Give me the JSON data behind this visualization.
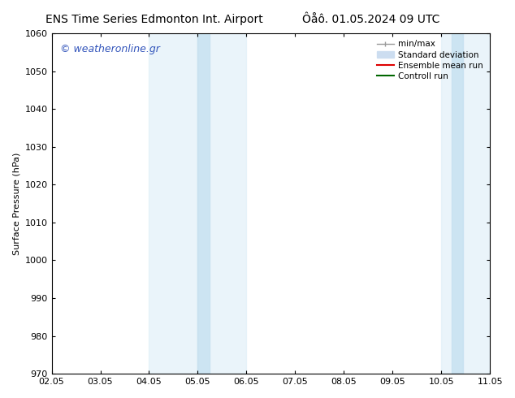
{
  "title_left": "ENS Time Series Edmonton Int. Airport",
  "title_right": "Ôåô. 01.05.2024 09 UTC",
  "ylabel": "Surface Pressure (hPa)",
  "ylim": [
    970,
    1060
  ],
  "yticks": [
    970,
    980,
    990,
    1000,
    1010,
    1020,
    1030,
    1040,
    1050,
    1060
  ],
  "xlabel_ticks": [
    "02.05",
    "03.05",
    "04.05",
    "05.05",
    "06.05",
    "07.05",
    "08.05",
    "09.05",
    "10.05",
    "11.05"
  ],
  "x_num_ticks": 10,
  "x_min": 0,
  "x_max": 9,
  "shaded_bands": [
    {
      "x_start": 2,
      "x_end": 3,
      "color": "#ddeef8",
      "alpha": 0.6
    },
    {
      "x_start": 3,
      "x_end": 4,
      "color": "#ddeef8",
      "alpha": 0.6
    },
    {
      "x_start": 8,
      "x_end": 9,
      "color": "#ddeef8",
      "alpha": 0.6
    }
  ],
  "inner_bands": [
    {
      "x_start": 3,
      "x_end": 3.25,
      "color": "#c5e0f0",
      "alpha": 0.8
    },
    {
      "x_start": 8.22,
      "x_end": 8.44,
      "color": "#c5e0f0",
      "alpha": 0.8
    }
  ],
  "watermark_text": "© weatheronline.gr",
  "watermark_color": "#3355bb",
  "bg_color": "#ffffff",
  "spine_color": "#000000",
  "legend_minmax_color": "#999999",
  "legend_std_color": "#ccddf0",
  "legend_ens_color": "#dd0000",
  "legend_ctrl_color": "#006600",
  "tick_fontsize": 8,
  "ylabel_fontsize": 8,
  "title_fontsize": 10,
  "watermark_fontsize": 9
}
